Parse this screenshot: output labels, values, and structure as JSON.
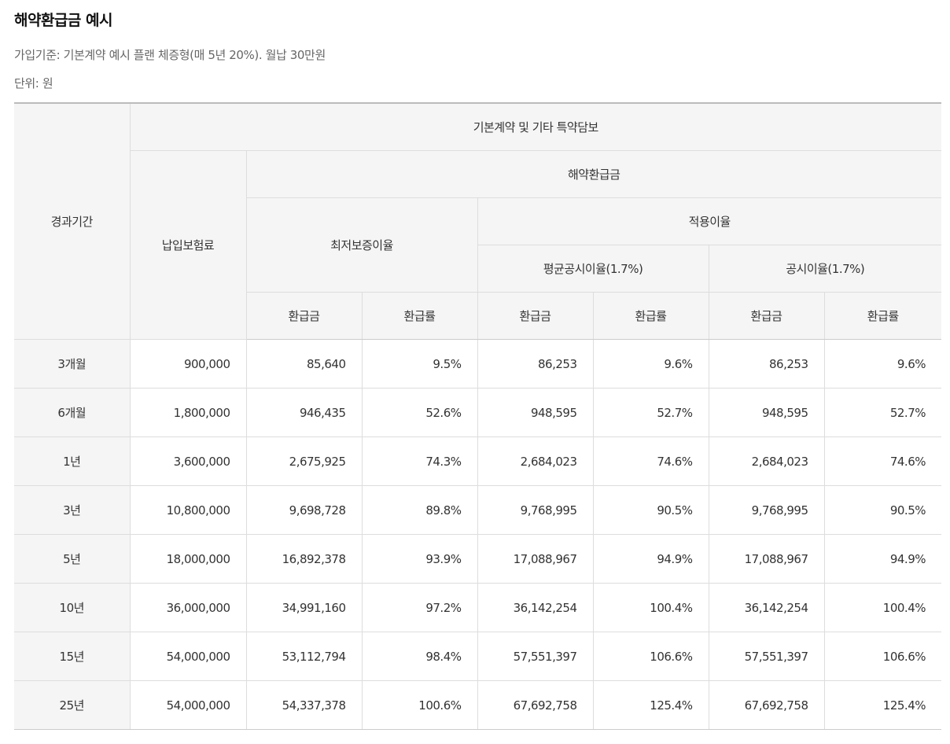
{
  "title": "해약환급금 예시",
  "caption_plan": "가입기준: 기본계약 예시 플랜 체증형(매 5년 20%). 월납 30만원",
  "caption_unit": "단위: 원",
  "headers": {
    "period": "경과기간",
    "group": "기본계약 및 기타 특약담보",
    "premium": "납입보험료",
    "refund": "해약환급금",
    "min_rate": "최저보증이율",
    "applied_rate": "적용이율",
    "avg_rate": "평균공시이율(1.7%)",
    "pub_rate": "공시이율(1.7%)",
    "amount": "환급금",
    "ratio": "환급률"
  },
  "rows": [
    {
      "period": "3개월",
      "premium": "900,000",
      "min_amount": "85,640",
      "min_ratio": "9.5%",
      "avg_amount": "86,253",
      "avg_ratio": "9.6%",
      "pub_amount": "86,253",
      "pub_ratio": "9.6%"
    },
    {
      "period": "6개월",
      "premium": "1,800,000",
      "min_amount": "946,435",
      "min_ratio": "52.6%",
      "avg_amount": "948,595",
      "avg_ratio": "52.7%",
      "pub_amount": "948,595",
      "pub_ratio": "52.7%"
    },
    {
      "period": "1년",
      "premium": "3,600,000",
      "min_amount": "2,675,925",
      "min_ratio": "74.3%",
      "avg_amount": "2,684,023",
      "avg_ratio": "74.6%",
      "pub_amount": "2,684,023",
      "pub_ratio": "74.6%"
    },
    {
      "period": "3년",
      "premium": "10,800,000",
      "min_amount": "9,698,728",
      "min_ratio": "89.8%",
      "avg_amount": "9,768,995",
      "avg_ratio": "90.5%",
      "pub_amount": "9,768,995",
      "pub_ratio": "90.5%"
    },
    {
      "period": "5년",
      "premium": "18,000,000",
      "min_amount": "16,892,378",
      "min_ratio": "93.9%",
      "avg_amount": "17,088,967",
      "avg_ratio": "94.9%",
      "pub_amount": "17,088,967",
      "pub_ratio": "94.9%"
    },
    {
      "period": "10년",
      "premium": "36,000,000",
      "min_amount": "34,991,160",
      "min_ratio": "97.2%",
      "avg_amount": "36,142,254",
      "avg_ratio": "100.4%",
      "pub_amount": "36,142,254",
      "pub_ratio": "100.4%"
    },
    {
      "period": "15년",
      "premium": "54,000,000",
      "min_amount": "53,112,794",
      "min_ratio": "98.4%",
      "avg_amount": "57,551,397",
      "avg_ratio": "106.6%",
      "pub_amount": "57,551,397",
      "pub_ratio": "106.6%"
    },
    {
      "period": "25년",
      "premium": "54,000,000",
      "min_amount": "54,337,378",
      "min_ratio": "100.6%",
      "avg_amount": "67,692,758",
      "avg_ratio": "125.4%",
      "pub_amount": "67,692,758",
      "pub_ratio": "125.4%"
    }
  ]
}
